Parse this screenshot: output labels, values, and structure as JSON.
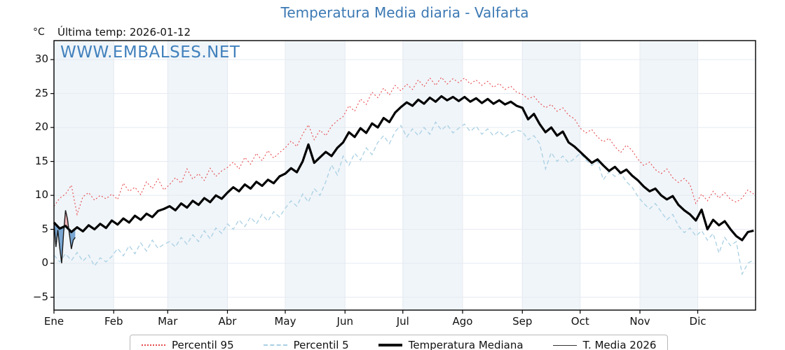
{
  "title": "Temperatura Media diaria - Valfarta",
  "header": {
    "units_label": "°C",
    "last_temp_label": "Última temp: 2026-01-12"
  },
  "watermark": "WWW.EMBALSES.NET",
  "colors": {
    "title_blue": "#3c79b4",
    "watermark_blue": "#4181bd",
    "band": "#f0f5f9",
    "grid": "#e4eaf1",
    "spine": "#000000",
    "p95_red": "#e64a4e",
    "p5_lightblue": "#a9d0e4",
    "median_black": "#000000",
    "t2026_line": "#1a1a1a",
    "fill_above_pink": "#f2b5ba",
    "fill_below_blue": "#79a6d2"
  },
  "legend": {
    "items": [
      {
        "label": "Percentil 95",
        "style": "dotted",
        "color": "#e64a4e",
        "thickness": 2
      },
      {
        "label": "Percentil 5",
        "style": "dashed",
        "color": "#a9d0e4",
        "thickness": 2
      },
      {
        "label": "Temperatura Mediana",
        "style": "solid",
        "color": "#111111",
        "thickness": 4
      },
      {
        "label": "T. Media 2026",
        "style": "solid",
        "color": "#333333",
        "thickness": 1.5
      }
    ]
  },
  "chart_data": {
    "type": "line",
    "title": "Temperatura Media diaria - Valfarta",
    "ylabel": "°C",
    "ylim": [
      -6.9,
      32.8
    ],
    "yticks": [
      30,
      25,
      20,
      15,
      10,
      5,
      0,
      -5
    ],
    "ytick_labels": [
      "30",
      "25",
      "20",
      "15",
      "10",
      "5",
      "0",
      "−5"
    ],
    "x_months": [
      "Ene",
      "Feb",
      "Mar",
      "Abr",
      "May",
      "Jun",
      "Jul",
      "Ago",
      "Sep",
      "Oct",
      "Nov",
      "Dic"
    ],
    "month_start_days": [
      1,
      32,
      60,
      91,
      121,
      152,
      182,
      213,
      244,
      274,
      305,
      335,
      366
    ],
    "shaded_months": "alternating-odd",
    "grid": true,
    "legend_position": "bottom",
    "annotations": {
      "last_temp_date": "2026-01-12"
    },
    "sample_x_start_day": 1,
    "sample_x_step_days": 3,
    "series": [
      {
        "name": "Percentil 95",
        "values": [
          8.4,
          9.6,
          10.2,
          11.5,
          7.2,
          9.8,
          10.4,
          9.3,
          10.0,
          9.5,
          10.2,
          9.4,
          11.8,
          10.6,
          11.2,
          10.1,
          12.0,
          11.0,
          12.4,
          10.8,
          11.6,
          12.6,
          11.8,
          13.9,
          12.4,
          13.2,
          12.2,
          14.0,
          12.8,
          13.6,
          14.1,
          14.9,
          13.9,
          15.6,
          14.6,
          16.2,
          15.1,
          16.6,
          15.5,
          16.3,
          17.0,
          18.0,
          17.2,
          19.0,
          20.4,
          18.2,
          19.6,
          18.8,
          20.2,
          21.0,
          21.6,
          23.2,
          22.4,
          24.2,
          23.4,
          25.2,
          24.4,
          25.8,
          24.8,
          26.2,
          25.4,
          26.4,
          25.6,
          27.0,
          26.0,
          27.3,
          26.2,
          27.4,
          26.4,
          27.2,
          26.6,
          27.3,
          26.4,
          27.0,
          26.2,
          26.8,
          25.9,
          26.5,
          25.6,
          26.1,
          25.2,
          24.9,
          24.2,
          24.6,
          23.6,
          22.9,
          23.4,
          22.4,
          22.9,
          21.8,
          21.3,
          19.9,
          19.2,
          19.7,
          18.6,
          17.9,
          18.4,
          17.2,
          16.3,
          17.4,
          16.6,
          15.3,
          14.4,
          14.9,
          13.8,
          13.2,
          13.9,
          12.6,
          11.9,
          12.5,
          11.6,
          8.8,
          10.2,
          9.2,
          10.6,
          9.6,
          10.4,
          9.4,
          9.0,
          9.6,
          10.8,
          10.2
        ]
      },
      {
        "name": "Percentil 5",
        "values": [
          1.2,
          0.2,
          1.4,
          0.4,
          1.6,
          0.3,
          1.2,
          -0.4,
          0.8,
          0.2,
          1.0,
          2.2,
          1.1,
          2.6,
          1.4,
          3.0,
          1.8,
          3.4,
          2.2,
          2.8,
          3.2,
          2.4,
          3.8,
          2.8,
          4.2,
          3.2,
          4.8,
          3.6,
          5.2,
          4.4,
          5.8,
          5.0,
          6.4,
          5.4,
          6.8,
          5.8,
          7.2,
          6.2,
          7.6,
          6.8,
          8.1,
          9.2,
          8.4,
          10.2,
          9.0,
          11.0,
          10.0,
          12.0,
          14.5,
          13.0,
          15.8,
          14.4,
          16.2,
          15.2,
          17.0,
          16.0,
          17.8,
          18.8,
          17.6,
          19.4,
          20.3,
          18.6,
          19.8,
          18.8,
          20.0,
          19.0,
          20.8,
          19.6,
          20.4,
          19.2,
          19.9,
          20.5,
          19.4,
          20.2,
          19.0,
          19.8,
          18.8,
          19.5,
          18.6,
          19.2,
          19.6,
          19.4,
          18.2,
          18.8,
          17.6,
          13.9,
          16.3,
          15.0,
          15.8,
          14.8,
          15.4,
          16.2,
          15.2,
          14.4,
          15.0,
          12.3,
          13.5,
          12.8,
          13.3,
          12.0,
          11.2,
          9.8,
          8.8,
          8.0,
          8.8,
          7.6,
          6.4,
          7.2,
          5.5,
          4.5,
          5.2,
          4.0,
          4.8,
          3.4,
          4.4,
          1.5,
          3.8,
          2.6,
          3.2,
          -1.6,
          0.0,
          0.5
        ]
      },
      {
        "name": "Temperatura Mediana",
        "values": [
          6.0,
          5.1,
          5.5,
          4.6,
          5.3,
          4.7,
          5.6,
          5.0,
          5.8,
          5.2,
          6.3,
          5.7,
          6.6,
          6.0,
          7.0,
          6.4,
          7.3,
          6.8,
          7.7,
          8.0,
          8.4,
          7.8,
          8.8,
          8.2,
          9.2,
          8.6,
          9.6,
          9.0,
          10.0,
          9.5,
          10.4,
          11.2,
          10.6,
          11.6,
          11.0,
          12.0,
          11.4,
          12.3,
          11.8,
          12.8,
          13.2,
          14.0,
          13.4,
          15.0,
          17.5,
          14.8,
          15.6,
          16.4,
          15.8,
          17.0,
          17.8,
          19.3,
          18.6,
          19.9,
          19.2,
          20.6,
          20.0,
          21.4,
          20.8,
          22.2,
          23.0,
          23.7,
          23.2,
          24.1,
          23.5,
          24.4,
          23.8,
          24.6,
          24.0,
          24.5,
          23.9,
          24.5,
          23.8,
          24.3,
          23.6,
          24.2,
          23.5,
          24.0,
          23.4,
          23.8,
          23.2,
          22.9,
          21.2,
          22.0,
          20.5,
          19.3,
          20.0,
          18.8,
          19.4,
          17.8,
          17.2,
          16.4,
          15.6,
          14.8,
          15.3,
          14.4,
          13.6,
          14.2,
          13.3,
          13.8,
          12.9,
          12.2,
          11.3,
          10.6,
          11.0,
          10.0,
          9.4,
          9.9,
          8.6,
          7.8,
          7.2,
          6.3,
          7.9,
          5.0,
          6.4,
          5.6,
          6.2,
          5.0,
          4.0,
          3.4,
          4.6,
          4.8
        ]
      },
      {
        "name": "T. Media 2026",
        "x_start_day": 1,
        "x_step_days": 1,
        "values": [
          6.0,
          2.4,
          4.9,
          2.2,
          0.0,
          4.6,
          7.8,
          6.5,
          4.3,
          2.1,
          3.4,
          3.8
        ]
      }
    ]
  }
}
